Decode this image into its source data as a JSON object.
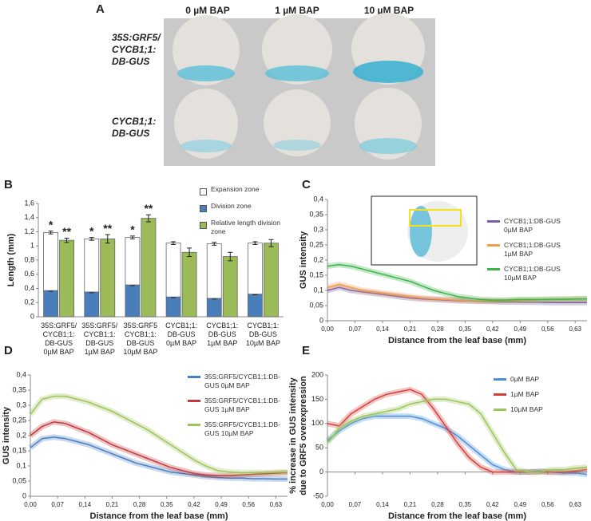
{
  "figure_a": {
    "panel_label": "A",
    "columns": [
      "0 µM BAP",
      "1 µM BAP",
      "10 µM BAP"
    ],
    "rows": [
      "35S:GRF5/ CYCB1;1: DB-GUS",
      "CYCB1;1: DB-GUS"
    ]
  },
  "chart_data": [
    {
      "type": "bar",
      "panel_label": "B",
      "ylabel": "Length (mm)",
      "categories": [
        [
          "35S:GRF5/",
          "CYCB1;1:",
          "DB-GUS",
          "0µM BAP"
        ],
        [
          "35S:GRF5/",
          "CYCB1;1:",
          "DB-GUS",
          "1µM BAP"
        ],
        [
          "35S:GRF5",
          "CYCB1;1:",
          "DB-GUS",
          "10µM BAP"
        ],
        [
          "CYCB1;1:",
          "DB-GUS",
          "0µM BAP"
        ],
        [
          "CYCB1;1:",
          "DB-GUS",
          "1µM BAP"
        ],
        [
          "CYCB1;1:",
          "DB-GUS",
          "10µM BAP"
        ]
      ],
      "series": [
        {
          "name": "Expansion zone",
          "color": "#ffffff",
          "stack": "zone",
          "values": [
            0.82,
            0.75,
            0.67,
            0.76,
            0.77,
            0.72
          ],
          "errors": [
            0.02,
            0.02,
            0.02,
            0.02,
            0.02,
            0.02
          ],
          "annotations": [
            "*",
            "*",
            "*",
            null,
            null,
            null
          ]
        },
        {
          "name": "Division zone",
          "color": "#4a7ebb",
          "stack": "zone",
          "values": [
            0.37,
            0.35,
            0.45,
            0.28,
            0.26,
            0.32
          ],
          "errors": [
            0.01,
            0.01,
            0.01,
            0.01,
            0.01,
            0.01
          ]
        },
        {
          "name": "Relative length division zone",
          "color": "#9bbb59",
          "values": [
            1.08,
            1.1,
            1.39,
            0.91,
            0.85,
            1.04
          ],
          "errors": [
            0.03,
            0.06,
            0.05,
            0.06,
            0.06,
            0.05
          ],
          "annotations": [
            "**",
            "**",
            "**",
            null,
            null,
            null
          ]
        }
      ],
      "ylim": [
        0,
        1.6
      ],
      "yticks": [
        0,
        {
          "value": 0.2,
          "label": "0,2"
        },
        {
          "value": 0.4,
          "label": "0,4"
        },
        {
          "value": 0.6,
          "label": "0,6"
        },
        {
          "value": 0.8,
          "label": "0,8"
        },
        1,
        {
          "value": 1.2,
          "label": "1,2"
        },
        {
          "value": 1.4,
          "label": "1,4"
        },
        {
          "value": 1.6,
          "label": "1,6"
        }
      ],
      "legend": "top-right"
    },
    {
      "type": "line",
      "panel_label": "C",
      "xlabel": "Distance from the leaf base (mm)",
      "ylabel": "GUS intensity",
      "x": [
        0,
        0.03,
        0.06,
        0.09,
        0.12,
        0.15,
        0.18,
        0.21,
        0.24,
        0.27,
        0.3,
        0.33,
        0.36,
        0.39,
        0.42,
        0.45,
        0.48,
        0.51,
        0.54,
        0.57,
        0.6,
        0.63,
        0.66
      ],
      "series": [
        {
          "name": "CYCB1;1:DB-GUS 0µM BAP",
          "color": "#7b5ea7",
          "values": [
            0.1,
            0.11,
            0.1,
            0.095,
            0.09,
            0.085,
            0.08,
            0.075,
            0.072,
            0.07,
            0.068,
            0.066,
            0.065,
            0.064,
            0.063,
            0.062,
            0.062,
            0.061,
            0.061,
            0.06,
            0.06,
            0.06,
            0.06
          ]
        },
        {
          "name": "CYCB1;1:DB-GUS 1µM BAP",
          "color": "#f39c4a",
          "values": [
            0.11,
            0.12,
            0.11,
            0.1,
            0.095,
            0.09,
            0.085,
            0.08,
            0.075,
            0.072,
            0.07,
            0.068,
            0.066,
            0.065,
            0.065,
            0.066,
            0.067,
            0.068,
            0.069,
            0.07,
            0.07,
            0.071,
            0.072
          ]
        },
        {
          "name": "CYCB1;1:DB-GUS 10µM BAP",
          "color": "#3cb44b",
          "values": [
            0.18,
            0.185,
            0.18,
            0.17,
            0.16,
            0.15,
            0.14,
            0.13,
            0.115,
            0.1,
            0.09,
            0.08,
            0.075,
            0.07,
            0.068,
            0.068,
            0.07,
            0.07,
            0.07,
            0.071,
            0.071,
            0.072,
            0.072
          ]
        }
      ],
      "xlim": [
        0,
        0.66
      ],
      "xticks": [
        {
          "value": 0,
          "label": "0,00"
        },
        {
          "value": 0.07,
          "label": "0,07"
        },
        {
          "value": 0.14,
          "label": "0,14"
        },
        {
          "value": 0.21,
          "label": "0,21"
        },
        {
          "value": 0.28,
          "label": "0,28"
        },
        {
          "value": 0.35,
          "label": "0,35"
        },
        {
          "value": 0.42,
          "label": "0,42"
        },
        {
          "value": 0.49,
          "label": "0,49"
        },
        {
          "value": 0.56,
          "label": "0,56"
        },
        {
          "value": 0.63,
          "label": "0,63"
        }
      ],
      "ylim": [
        0,
        0.4
      ],
      "yticks": [
        0,
        {
          "value": 0.05,
          "label": "0,05"
        },
        {
          "value": 0.1,
          "label": "0,1"
        },
        {
          "value": 0.15,
          "label": "0,15"
        },
        {
          "value": 0.2,
          "label": "0,2"
        },
        {
          "value": 0.25,
          "label": "0,25"
        },
        {
          "value": 0.3,
          "label": "0,3"
        },
        {
          "value": 0.35,
          "label": "0,35"
        },
        {
          "value": 0.4,
          "label": "0,4"
        }
      ],
      "legend": "right"
    },
    {
      "type": "line",
      "panel_label": "D",
      "xlabel": "Distance from the leaf base (mm)",
      "ylabel": "GUS intensity",
      "x": [
        0,
        0.03,
        0.06,
        0.09,
        0.12,
        0.15,
        0.18,
        0.21,
        0.24,
        0.27,
        0.3,
        0.33,
        0.36,
        0.39,
        0.42,
        0.45,
        0.48,
        0.51,
        0.54,
        0.57,
        0.6,
        0.63,
        0.66
      ],
      "series": [
        {
          "name": "35S:GRF5/CYCB1;1:DB-GUS 0µM BAP",
          "color": "#4a7ec2",
          "values": [
            0.16,
            0.19,
            0.195,
            0.19,
            0.18,
            0.17,
            0.155,
            0.14,
            0.125,
            0.11,
            0.1,
            0.09,
            0.08,
            0.075,
            0.07,
            0.065,
            0.062,
            0.06,
            0.06,
            0.058,
            0.058,
            0.057,
            0.057
          ]
        },
        {
          "name": "35S:GRF5/CYCB1;1:DB-GUS 1µM BAP",
          "color": "#c0393b",
          "values": [
            0.2,
            0.23,
            0.245,
            0.24,
            0.225,
            0.21,
            0.19,
            0.17,
            0.155,
            0.14,
            0.125,
            0.11,
            0.095,
            0.085,
            0.075,
            0.07,
            0.068,
            0.068,
            0.07,
            0.072,
            0.074,
            0.076,
            0.078
          ]
        },
        {
          "name": "35S:GRF5/CYCB1;1:DB-GUS 10µM BAP",
          "color": "#9dc35a",
          "values": [
            0.27,
            0.32,
            0.33,
            0.33,
            0.32,
            0.31,
            0.295,
            0.28,
            0.26,
            0.24,
            0.22,
            0.195,
            0.17,
            0.145,
            0.12,
            0.1,
            0.085,
            0.08,
            0.078,
            0.078,
            0.078,
            0.079,
            0.08
          ]
        }
      ],
      "xlim": [
        0,
        0.66
      ],
      "xticks": [
        {
          "value": 0,
          "label": "0,00"
        },
        {
          "value": 0.07,
          "label": "0,07"
        },
        {
          "value": 0.14,
          "label": "0,14"
        },
        {
          "value": 0.21,
          "label": "0,21"
        },
        {
          "value": 0.28,
          "label": "0,28"
        },
        {
          "value": 0.35,
          "label": "0,35"
        },
        {
          "value": 0.42,
          "label": "0,42"
        },
        {
          "value": 0.49,
          "label": "0,49"
        },
        {
          "value": 0.56,
          "label": "0,56"
        },
        {
          "value": 0.63,
          "label": "0,63"
        }
      ],
      "ylim": [
        0,
        0.4
      ],
      "yticks": [
        0,
        {
          "value": 0.05,
          "label": "0,05"
        },
        {
          "value": 0.1,
          "label": "0,1"
        },
        {
          "value": 0.15,
          "label": "0,15"
        },
        {
          "value": 0.2,
          "label": "0,2"
        },
        {
          "value": 0.25,
          "label": "0,25"
        },
        {
          "value": 0.3,
          "label": "0,3"
        },
        {
          "value": 0.35,
          "label": "0,35"
        },
        {
          "value": 0.4,
          "label": "0,4"
        }
      ],
      "legend": "right"
    },
    {
      "type": "line",
      "panel_label": "E",
      "xlabel": "Distance from the leaf base (mm)",
      "ylabel": [
        "% increase in GUS intensity",
        "due to GRF5 overexpression"
      ],
      "x": [
        0,
        0.03,
        0.06,
        0.09,
        0.12,
        0.15,
        0.18,
        0.21,
        0.24,
        0.27,
        0.3,
        0.33,
        0.36,
        0.39,
        0.42,
        0.45,
        0.48,
        0.51,
        0.54,
        0.57,
        0.6,
        0.63,
        0.66
      ],
      "series": [
        {
          "name": "0µM BAP",
          "color": "#4a90d9",
          "values": [
            65,
            85,
            100,
            110,
            115,
            115,
            115,
            115,
            110,
            100,
            90,
            75,
            55,
            35,
            15,
            5,
            0,
            0,
            2,
            0,
            -2,
            -2,
            -5
          ]
        },
        {
          "name": "1µM BAP",
          "color": "#d43f3a",
          "values": [
            100,
            95,
            120,
            135,
            150,
            160,
            165,
            170,
            160,
            130,
            95,
            60,
            30,
            10,
            0,
            0,
            0,
            0,
            0,
            0,
            0,
            2,
            5
          ]
        },
        {
          "name": "10µM BAP",
          "color": "#9bc45a",
          "values": [
            60,
            90,
            105,
            115,
            120,
            125,
            130,
            140,
            145,
            150,
            150,
            145,
            140,
            120,
            80,
            40,
            5,
            0,
            0,
            5,
            5,
            8,
            10
          ]
        }
      ],
      "xlim": [
        0,
        0.66
      ],
      "xticks": [
        {
          "value": 0,
          "label": "0,00"
        },
        {
          "value": 0.07,
          "label": "0,07"
        },
        {
          "value": 0.14,
          "label": "0,14"
        },
        {
          "value": 0.21,
          "label": "0,21"
        },
        {
          "value": 0.28,
          "label": "0,28"
        },
        {
          "value": 0.35,
          "label": "0,35"
        },
        {
          "value": 0.42,
          "label": "0,42"
        },
        {
          "value": 0.49,
          "label": "0,49"
        },
        {
          "value": 0.56,
          "label": "0,56"
        },
        {
          "value": 0.63,
          "label": "0,63"
        }
      ],
      "ylim": [
        -50,
        200
      ],
      "yticks": [
        -50,
        0,
        50,
        100,
        150,
        200
      ],
      "legend": "right"
    }
  ]
}
